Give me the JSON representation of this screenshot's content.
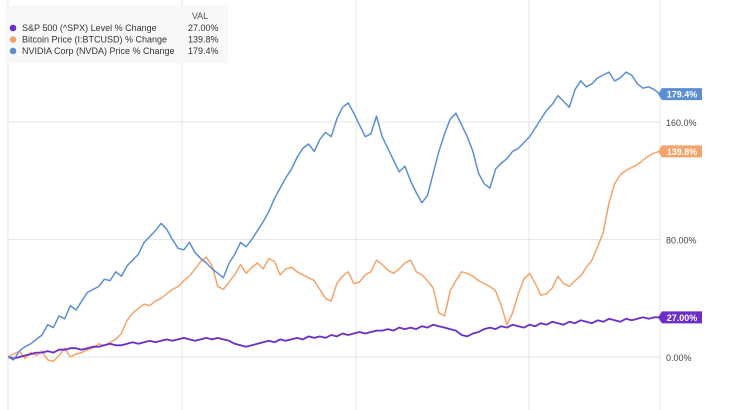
{
  "chart_data": {
    "type": "line",
    "title": "",
    "xlabel": "",
    "ylabel": "",
    "ylim": [
      -10,
      210
    ],
    "yticks": [
      {
        "value": 0,
        "label": "0.00%"
      },
      {
        "value": 80,
        "label": "80.00%"
      },
      {
        "value": 160,
        "label": "160.0%"
      }
    ],
    "grid": true,
    "legend_position": "top-left",
    "legend_header": "VAL",
    "series": [
      {
        "name": "S&P 500 (^SPX) Level % Change",
        "end_label": "27.00%",
        "color": "#6a2fc9",
        "values": [
          0,
          -1,
          0,
          1,
          2,
          3,
          3,
          4,
          3,
          5,
          5,
          6,
          6,
          5,
          6,
          7,
          7,
          8,
          9,
          8,
          8,
          9,
          10,
          9,
          10,
          11,
          10,
          11,
          12,
          11,
          12,
          13,
          12,
          11,
          12,
          13,
          12,
          13,
          12,
          11,
          9,
          8,
          7,
          8,
          9,
          10,
          11,
          10,
          12,
          11,
          12,
          13,
          12,
          14,
          13,
          14,
          13,
          15,
          14,
          16,
          15,
          16,
          17,
          16,
          17,
          18,
          18,
          19,
          18,
          20,
          19,
          20,
          19,
          21,
          20,
          22,
          21,
          20,
          19,
          18,
          15,
          14,
          16,
          17,
          19,
          20,
          19,
          21,
          20,
          22,
          21,
          20,
          22,
          21,
          23,
          22,
          24,
          23,
          22,
          24,
          23,
          25,
          24,
          23,
          25,
          24,
          26,
          25,
          24,
          26,
          25,
          26,
          27,
          26,
          27,
          27
        ]
      },
      {
        "name": "Bitcoin Price (I:BTCUSD) % Change",
        "end_label": "139.8%",
        "color": "#f4a46a",
        "values": [
          0,
          2,
          4,
          -1,
          3,
          1,
          4,
          -2,
          -3,
          1,
          6,
          0,
          2,
          3,
          5,
          6,
          9,
          8,
          10,
          12,
          16,
          25,
          30,
          33,
          36,
          35,
          38,
          40,
          43,
          46,
          48,
          52,
          55,
          60,
          65,
          68,
          62,
          48,
          46,
          51,
          56,
          63,
          57,
          61,
          64,
          60,
          67,
          65,
          56,
          60,
          61,
          58,
          56,
          54,
          52,
          46,
          40,
          38,
          50,
          55,
          58,
          50,
          51,
          56,
          58,
          66,
          63,
          59,
          57,
          60,
          64,
          66,
          58,
          56,
          52,
          47,
          30,
          28,
          45,
          52,
          58,
          57,
          55,
          52,
          50,
          48,
          45,
          35,
          22,
          30,
          43,
          53,
          57,
          50,
          42,
          43,
          47,
          55,
          50,
          48,
          52,
          55,
          61,
          66,
          75,
          85,
          105,
          118,
          124,
          127,
          129,
          131,
          134,
          137,
          139,
          140
        ]
      },
      {
        "name": "NVIDIA Corp (NVDA) Price % Change",
        "end_label": "179.4%",
        "color": "#5b8fd3",
        "values": [
          0,
          -2,
          4,
          7,
          9,
          12,
          15,
          22,
          20,
          28,
          26,
          35,
          32,
          38,
          44,
          46,
          48,
          53,
          52,
          58,
          55,
          62,
          66,
          70,
          78,
          82,
          86,
          91,
          87,
          80,
          74,
          73,
          78,
          71,
          67,
          64,
          60,
          57,
          54,
          64,
          70,
          78,
          75,
          80,
          86,
          92,
          99,
          108,
          115,
          122,
          128,
          136,
          142,
          145,
          140,
          148,
          153,
          150,
          162,
          170,
          173,
          166,
          158,
          150,
          152,
          164,
          150,
          142,
          134,
          126,
          130,
          120,
          112,
          105,
          110,
          125,
          140,
          152,
          162,
          166,
          158,
          150,
          140,
          125,
          118,
          115,
          128,
          132,
          135,
          140,
          142,
          146,
          150,
          156,
          162,
          168,
          172,
          178,
          174,
          170,
          182,
          188,
          184,
          186,
          190,
          192,
          194,
          188,
          190,
          194,
          192,
          186,
          183,
          184,
          182,
          179
        ]
      }
    ]
  }
}
